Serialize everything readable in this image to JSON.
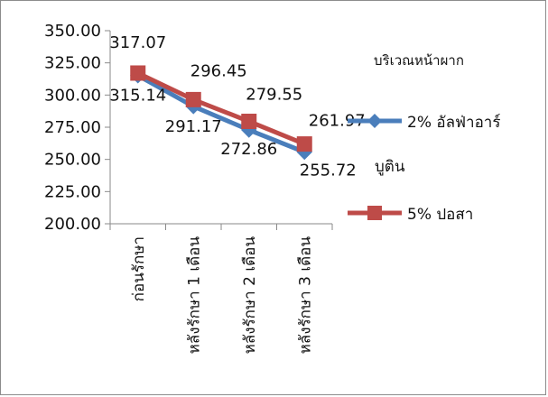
{
  "chart_data": {
    "type": "line",
    "categories": [
      "ก่อนรักษา",
      "หลังรักษา 1 เดือน",
      "หลังรักษา 2 เดือน",
      "หลังรักษา 3 เดือน"
    ],
    "series": [
      {
        "name": "2% อัลฟ่าอาร์บูติน",
        "name_lines": [
          "2% อัลฟ่าอาร์",
          "บูติน"
        ],
        "color": "#4a7ebb",
        "marker": "diamond",
        "values": [
          315.14,
          291.17,
          272.86,
          255.72
        ],
        "labels": [
          "315.14",
          "291.17",
          "272.86",
          "255.72"
        ]
      },
      {
        "name": "5% ปอสา",
        "name_lines": [
          "5% ปอสา"
        ],
        "color": "#be4b48",
        "marker": "square",
        "values": [
          317.07,
          296.45,
          279.55,
          261.97
        ],
        "labels": [
          "317.07",
          "296.45",
          "279.55",
          "261.97"
        ]
      }
    ],
    "legend_title": "บริเวณหน้าผาก",
    "ylim": [
      200,
      350
    ],
    "yticks": [
      "200.00",
      "225.00",
      "250.00",
      "275.00",
      "300.00",
      "325.00",
      "350.00"
    ],
    "grid": false,
    "legend_position": "right"
  }
}
